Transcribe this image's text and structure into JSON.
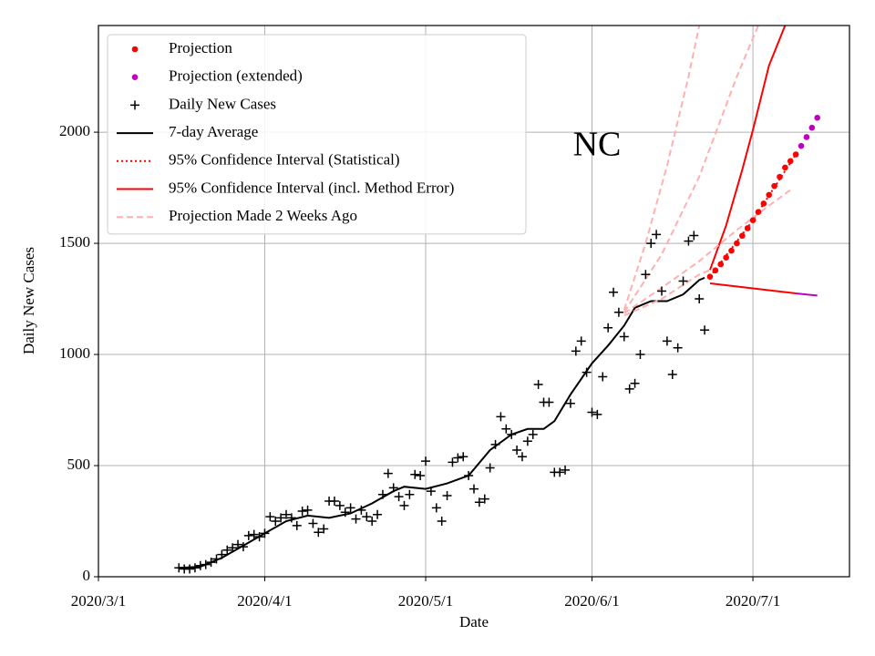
{
  "chart_data": {
    "type": "line",
    "title": "NC",
    "xlabel": "Date",
    "ylabel": "Daily New Cases",
    "xlim": [
      "2020/3/1",
      "2020/7/19"
    ],
    "xticks": [
      "2020/3/1",
      "2020/4/1",
      "2020/5/1",
      "2020/6/1",
      "2020/7/1"
    ],
    "ylim": [
      0,
      2480
    ],
    "yticks": [
      0,
      500,
      1000,
      1500,
      2000
    ],
    "grid": true,
    "legend": "upper left",
    "series": [
      {
        "name": "Projection",
        "color": "#ff0000",
        "marker": "o",
        "linestyle": "none",
        "x": [
          "2020/6/23",
          "2020/6/24",
          "2020/6/25",
          "2020/6/26",
          "2020/6/27",
          "2020/6/28",
          "2020/6/29",
          "2020/6/30",
          "2020/7/1",
          "2020/7/2",
          "2020/7/3",
          "2020/7/4",
          "2020/7/5",
          "2020/7/6",
          "2020/7/7",
          "2020/7/8",
          "2020/7/9"
        ],
        "values": [
          1350,
          1378,
          1406,
          1436,
          1467,
          1500,
          1534,
          1568,
          1604,
          1641,
          1679,
          1718,
          1758,
          1799,
          1841,
          1870,
          1900
        ]
      },
      {
        "name": "Projection (extended)",
        "color": "#bf00bf",
        "marker": "o",
        "linestyle": "none",
        "x": [
          "2020/7/10",
          "2020/7/11",
          "2020/7/12",
          "2020/7/13"
        ],
        "values": [
          1938,
          1978,
          2020,
          2065
        ]
      },
      {
        "name": "Daily New Cases",
        "color": "#000000",
        "marker": "+",
        "linestyle": "none",
        "x": [
          "2020/3/16",
          "2020/3/17",
          "2020/3/18",
          "2020/3/19",
          "2020/3/20",
          "2020/3/21",
          "2020/3/22",
          "2020/3/23",
          "2020/3/24",
          "2020/3/25",
          "2020/3/26",
          "2020/3/27",
          "2020/3/28",
          "2020/3/29",
          "2020/3/30",
          "2020/3/31",
          "2020/4/1",
          "2020/4/2",
          "2020/4/3",
          "2020/4/4",
          "2020/4/5",
          "2020/4/6",
          "2020/4/7",
          "2020/4/8",
          "2020/4/9",
          "2020/4/10",
          "2020/4/11",
          "2020/4/12",
          "2020/4/13",
          "2020/4/14",
          "2020/4/15",
          "2020/4/16",
          "2020/4/17",
          "2020/4/18",
          "2020/4/19",
          "2020/4/20",
          "2020/4/21",
          "2020/4/22",
          "2020/4/23",
          "2020/4/24",
          "2020/4/25",
          "2020/4/26",
          "2020/4/27",
          "2020/4/28",
          "2020/4/29",
          "2020/4/30",
          "2020/5/1",
          "2020/5/2",
          "2020/5/3",
          "2020/5/4",
          "2020/5/5",
          "2020/5/6",
          "2020/5/7",
          "2020/5/8",
          "2020/5/9",
          "2020/5/10",
          "2020/5/11",
          "2020/5/12",
          "2020/5/13",
          "2020/5/14",
          "2020/5/15",
          "2020/5/16",
          "2020/5/17",
          "2020/5/18",
          "2020/5/19",
          "2020/5/20",
          "2020/5/21",
          "2020/5/22",
          "2020/5/23",
          "2020/5/24",
          "2020/5/25",
          "2020/5/26",
          "2020/5/27",
          "2020/5/28",
          "2020/5/29",
          "2020/5/30",
          "2020/5/31",
          "2020/6/1",
          "2020/6/2",
          "2020/6/3",
          "2020/6/4",
          "2020/6/5",
          "2020/6/6",
          "2020/6/7",
          "2020/6/8",
          "2020/6/9",
          "2020/6/10",
          "2020/6/11",
          "2020/6/12",
          "2020/6/13",
          "2020/6/14",
          "2020/6/15",
          "2020/6/16",
          "2020/6/17",
          "2020/6/18",
          "2020/6/19",
          "2020/6/20",
          "2020/6/21",
          "2020/6/22"
        ],
        "values": [
          40,
          35,
          35,
          40,
          50,
          55,
          65,
          80,
          100,
          120,
          130,
          145,
          135,
          185,
          190,
          180,
          195,
          270,
          250,
          265,
          280,
          265,
          230,
          295,
          300,
          240,
          200,
          215,
          340,
          340,
          320,
          290,
          310,
          260,
          300,
          270,
          250,
          280,
          370,
          465,
          400,
          360,
          320,
          370,
          460,
          455,
          520,
          385,
          310,
          250,
          365,
          515,
          535,
          540,
          455,
          395,
          335,
          350,
          490,
          595,
          720,
          665,
          640,
          570,
          540,
          610,
          640,
          865,
          785,
          785,
          470,
          470,
          480,
          780,
          1015,
          1060,
          920,
          740,
          730,
          900,
          1120,
          1280,
          1190,
          1080,
          845,
          870,
          1000,
          1360,
          1500,
          1540,
          1285,
          1060,
          910,
          1030,
          1330,
          1510,
          1535,
          1250,
          1110
        ]
      },
      {
        "name": "7-day Average",
        "color": "#000000",
        "linestyle": "solid",
        "x": [
          "2020/3/16",
          "2020/3/20",
          "2020/3/24",
          "2020/3/28",
          "2020/4/1",
          "2020/4/5",
          "2020/4/9",
          "2020/4/13",
          "2020/4/17",
          "2020/4/21",
          "2020/4/25",
          "2020/4/27",
          "2020/5/1",
          "2020/5/5",
          "2020/5/9",
          "2020/5/13",
          "2020/5/17",
          "2020/5/20",
          "2020/5/23",
          "2020/5/25",
          "2020/5/28",
          "2020/6/1",
          "2020/6/4",
          "2020/6/7",
          "2020/6/9",
          "2020/6/12",
          "2020/6/15",
          "2020/6/18",
          "2020/6/21",
          "2020/6/22"
        ],
        "values": [
          40,
          45,
          85,
          140,
          195,
          250,
          275,
          265,
          285,
          330,
          385,
          405,
          395,
          420,
          455,
          570,
          640,
          665,
          665,
          700,
          820,
          960,
          1040,
          1130,
          1210,
          1240,
          1240,
          1270,
          1335,
          1345
        ]
      },
      {
        "name": "95% Confidence Interval (Statistical)",
        "color": "#ff0000",
        "linestyle": "dotted",
        "x": [
          "2020/6/23",
          "2020/7/1",
          "2020/7/9"
        ],
        "values": [
          1350,
          1604,
          1900
        ]
      },
      {
        "name": "95% Confidence Interval (incl. Method Error)",
        "color": "#ff0000",
        "linestyle": "solid",
        "x": [
          "2020/6/23",
          "2020/6/26",
          "2020/6/29",
          "2020/7/1",
          "2020/7/4",
          "2020/7/7"
        ],
        "values": [
          1380,
          1580,
          1830,
          2010,
          2300,
          2480
        ]
      },
      {
        "color": "#ff0000",
        "linestyle": "solid",
        "x": [
          "2020/6/23",
          "2020/7/9"
        ],
        "values": [
          1320,
          1275
        ]
      },
      {
        "color": "#bf00bf",
        "linestyle": "solid",
        "x": [
          "2020/7/9",
          "2020/7/13"
        ],
        "values": [
          1275,
          1265
        ]
      },
      {
        "name": "Projection Made 2 Weeks Ago",
        "color": "#ffb0b0",
        "linestyle": "dashed",
        "x": [
          "2020/6/7",
          "2020/6/11",
          "2020/6/15",
          "2020/6/19",
          "2020/6/21"
        ],
        "values": [
          1200,
          1500,
          1850,
          2250,
          2480
        ]
      },
      {
        "color": "#ffb0b0",
        "linestyle": "dashed",
        "x": [
          "2020/6/7",
          "2020/6/14",
          "2020/6/21",
          "2020/6/28",
          "2020/7/2"
        ],
        "values": [
          1190,
          1450,
          1800,
          2250,
          2480
        ]
      },
      {
        "color": "#ffb0b0",
        "linestyle": "dashed",
        "x": [
          "2020/6/7",
          "2020/6/14",
          "2020/6/21",
          "2020/6/28",
          "2020/7/4",
          "2020/7/8"
        ],
        "values": [
          1185,
          1300,
          1420,
          1560,
          1670,
          1740
        ]
      },
      {
        "color": "#ffb0b0",
        "linestyle": "dashed",
        "x": [
          "2020/6/7",
          "2020/6/14",
          "2020/6/21",
          "2020/6/23"
        ],
        "values": [
          1175,
          1250,
          1360,
          1380
        ]
      }
    ]
  }
}
